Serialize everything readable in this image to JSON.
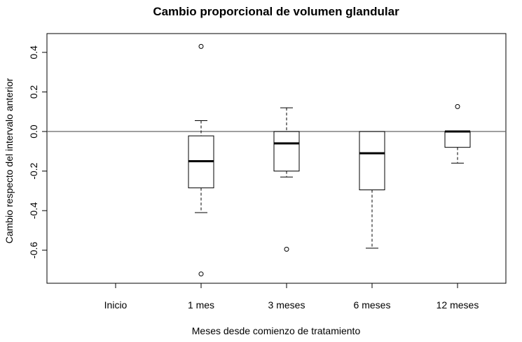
{
  "chart_data": {
    "type": "boxplot",
    "title": "Cambio proporcional de volumen glandular",
    "xlabel": "Meses desde comienzo de tratamiento",
    "ylabel": "Cambio respecto del intervalo anterior",
    "categories": [
      "Inicio",
      "1 mes",
      "3 meses",
      "6 meses",
      "12 meses"
    ],
    "yticks": [
      0.4,
      0.2,
      0.0,
      -0.2,
      -0.4,
      -0.6
    ],
    "ytick_labels": [
      "0.4",
      "0.2",
      "0.0",
      "-0.2",
      "-0.4",
      "-0.6"
    ],
    "ylim": [
      -0.767,
      0.495
    ],
    "reference_line": 0.0,
    "boxes": [
      null,
      {
        "whisker_low": -0.41,
        "q1": -0.285,
        "median": -0.15,
        "q3": -0.022,
        "whisker_high": 0.055,
        "outliers": [
          0.43,
          -0.72
        ]
      },
      {
        "whisker_low": -0.23,
        "q1": -0.2,
        "median": -0.06,
        "q3": 0.0,
        "whisker_high": 0.12,
        "outliers": [
          -0.595
        ]
      },
      {
        "whisker_low": -0.59,
        "q1": -0.295,
        "median": -0.11,
        "q3": 0.0,
        "whisker_high": 0.0,
        "outliers": []
      },
      {
        "whisker_low": -0.16,
        "q1": -0.08,
        "median": 0.0,
        "q3": 0.0,
        "whisker_high": 0.0,
        "outliers": [
          0.126
        ]
      }
    ]
  }
}
